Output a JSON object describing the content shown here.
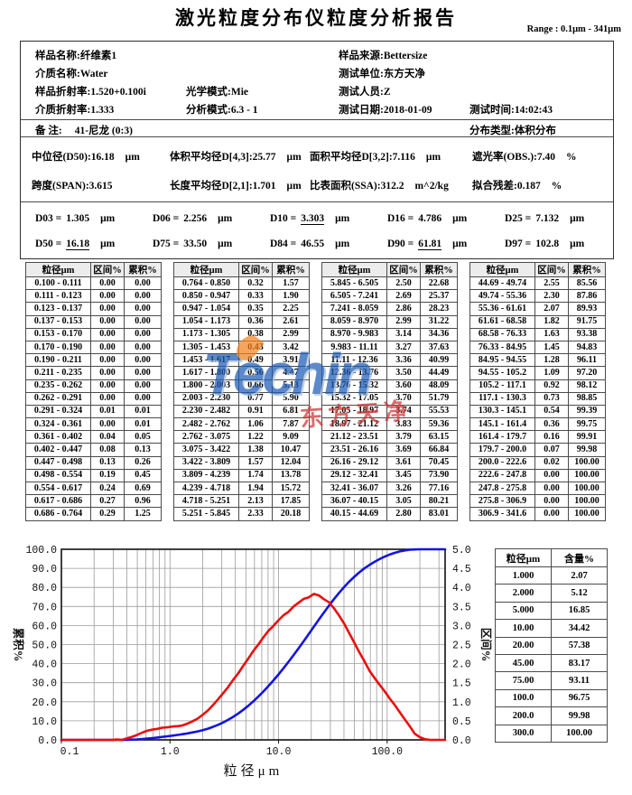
{
  "title": "激光粒度分布仪粒度分析报告",
  "range_label": "Range : 0.1μm - 341μm",
  "info": {
    "items": [
      {
        "label": "样品名称:",
        "value": "纤维素1"
      },
      {
        "label": "样品来源:",
        "value": "Bettersize"
      },
      {
        "label": "介质名称:",
        "value": "Water"
      },
      {
        "label": "测试单位:",
        "value": "东方天净"
      },
      {
        "label": "样品折射率:",
        "value": "1.520+0.100i"
      },
      {
        "label": "光学模式:",
        "value": "Mie"
      },
      {
        "label": "测试人员:",
        "value": "Z"
      },
      {
        "label": "介质折射率:",
        "value": "1.333"
      },
      {
        "label": "分析模式:",
        "value": "6.3 - 1"
      },
      {
        "label": "测试日期:",
        "value": "2018-01-09"
      },
      {
        "label": "测试时间:",
        "value": "14:02:43"
      },
      {
        "label": "备  注:",
        "value": "41-尼龙 (0:3)"
      },
      {
        "label": "分布类型:",
        "value": "体积分布"
      }
    ]
  },
  "stats": {
    "items": [
      {
        "label": "中位径(D50):",
        "value": "16.18",
        "unit": "μm"
      },
      {
        "label": "体积平均径D[4,3]:",
        "value": "25.77",
        "unit": "μm"
      },
      {
        "label": "面积平均径D[3,2]:",
        "value": "7.116",
        "unit": "μm"
      },
      {
        "label": "遮光率(OBS.):",
        "value": "7.40",
        "unit": "%"
      },
      {
        "label": "跨度(SPAN):",
        "value": "3.615",
        "unit": ""
      },
      {
        "label": "长度平均径D[2,1]:",
        "value": "1.701",
        "unit": "μm"
      },
      {
        "label": "比表面积(SSA):",
        "value": "312.2",
        "unit": "m^2/kg"
      },
      {
        "label": "拟合残差:",
        "value": "0.187",
        "unit": "%"
      }
    ]
  },
  "dvalues": [
    {
      "label": "D03 =",
      "value": "1.305",
      "unit": "μm",
      "underline": false
    },
    {
      "label": "D06 =",
      "value": "2.256",
      "unit": "μm",
      "underline": false
    },
    {
      "label": "D10 =",
      "value": "3.303",
      "unit": "μm",
      "underline": true
    },
    {
      "label": "D16 =",
      "value": "4.786",
      "unit": "μm",
      "underline": false
    },
    {
      "label": "D25 =",
      "value": "7.132",
      "unit": "μm",
      "underline": false
    },
    {
      "label": "D50 =",
      "value": "16.18",
      "unit": "μm",
      "underline": true
    },
    {
      "label": "D75 =",
      "value": "33.50",
      "unit": "μm",
      "underline": false
    },
    {
      "label": "D84 =",
      "value": "46.55",
      "unit": "μm",
      "underline": false
    },
    {
      "label": "D90 =",
      "value": "61.81",
      "unit": "μm",
      "underline": true
    },
    {
      "label": "D97 =",
      "value": "102.8",
      "unit": "μm",
      "underline": false
    }
  ],
  "main_table": {
    "header": [
      "粒径μm",
      "区间%",
      "累积%"
    ],
    "groups": [
      [
        [
          "0.100 - 0.111",
          "0.00",
          "0.00"
        ],
        [
          "0.111 - 0.123",
          "0.00",
          "0.00"
        ],
        [
          "0.123 - 0.137",
          "0.00",
          "0.00"
        ],
        [
          "0.137 - 0.153",
          "0.00",
          "0.00"
        ],
        [
          "0.153 - 0.170",
          "0.00",
          "0.00"
        ],
        [
          "0.170 - 0.190",
          "0.00",
          "0.00"
        ],
        [
          "0.190 - 0.211",
          "0.00",
          "0.00"
        ],
        [
          "0.211 - 0.235",
          "0.00",
          "0.00"
        ],
        [
          "0.235 - 0.262",
          "0.00",
          "0.00"
        ],
        [
          "0.262 - 0.291",
          "0.00",
          "0.00"
        ],
        [
          "0.291 - 0.324",
          "0.01",
          "0.01"
        ],
        [
          "0.324 - 0.361",
          "0.00",
          "0.01"
        ],
        [
          "0.361 - 0.402",
          "0.04",
          "0.05"
        ],
        [
          "0.402 - 0.447",
          "0.08",
          "0.13"
        ],
        [
          "0.447 - 0.498",
          "0.13",
          "0.26"
        ],
        [
          "0.498 - 0.554",
          "0.19",
          "0.45"
        ],
        [
          "0.554 - 0.617",
          "0.24",
          "0.69"
        ],
        [
          "0.617 - 0.686",
          "0.27",
          "0.96"
        ],
        [
          "0.686 - 0.764",
          "0.29",
          "1.25"
        ]
      ],
      [
        [
          "0.764 - 0.850",
          "0.32",
          "1.57"
        ],
        [
          "0.850 - 0.947",
          "0.33",
          "1.90"
        ],
        [
          "0.947 - 1.054",
          "0.35",
          "2.25"
        ],
        [
          "1.054 - 1.173",
          "0.36",
          "2.61"
        ],
        [
          "1.173 - 1.305",
          "0.38",
          "2.99"
        ],
        [
          "1.305 - 1.453",
          "0.43",
          "3.42"
        ],
        [
          "1.453 - 1.617",
          "0.49",
          "3.91"
        ],
        [
          "1.617 - 1.800",
          "0.56",
          "4.47"
        ],
        [
          "1.800 - 2.003",
          "0.66",
          "5.13"
        ],
        [
          "2.003 - 2.230",
          "0.77",
          "5.90"
        ],
        [
          "2.230 - 2.482",
          "0.91",
          "6.81"
        ],
        [
          "2.482 - 2.762",
          "1.06",
          "7.87"
        ],
        [
          "2.762 - 3.075",
          "1.22",
          "9.09"
        ],
        [
          "3.075 - 3.422",
          "1.38",
          "10.47"
        ],
        [
          "3.422 - 3.809",
          "1.57",
          "12.04"
        ],
        [
          "3.809 - 4.239",
          "1.74",
          "13.78"
        ],
        [
          "4.239 - 4.718",
          "1.94",
          "15.72"
        ],
        [
          "4.718 - 5.251",
          "2.13",
          "17.85"
        ],
        [
          "5.251 - 5.845",
          "2.33",
          "20.18"
        ]
      ],
      [
        [
          "5.845 - 6.505",
          "2.50",
          "22.68"
        ],
        [
          "6.505 - 7.241",
          "2.69",
          "25.37"
        ],
        [
          "7.241 - 8.059",
          "2.86",
          "28.23"
        ],
        [
          "8.059 - 8.970",
          "2.99",
          "31.22"
        ],
        [
          "8.970 - 9.983",
          "3.14",
          "34.36"
        ],
        [
          "9.983 - 11.11",
          "3.27",
          "37.63"
        ],
        [
          "11.11 - 12.36",
          "3.36",
          "40.99"
        ],
        [
          "12.36 - 13.76",
          "3.50",
          "44.49"
        ],
        [
          "13.76 - 15.32",
          "3.60",
          "48.09"
        ],
        [
          "15.32 - 17.05",
          "3.70",
          "51.79"
        ],
        [
          "17.05 - 18.97",
          "3.74",
          "55.53"
        ],
        [
          "18.97 - 21.12",
          "3.83",
          "59.36"
        ],
        [
          "21.12 - 23.51",
          "3.79",
          "63.15"
        ],
        [
          "23.51 - 26.16",
          "3.69",
          "66.84"
        ],
        [
          "26.16 - 29.12",
          "3.61",
          "70.45"
        ],
        [
          "29.12 - 32.41",
          "3.45",
          "73.90"
        ],
        [
          "32.41 - 36.07",
          "3.26",
          "77.16"
        ],
        [
          "36.07 - 40.15",
          "3.05",
          "80.21"
        ],
        [
          "40.15 - 44.69",
          "2.80",
          "83.01"
        ]
      ],
      [
        [
          "44.69 - 49.74",
          "2.55",
          "85.56"
        ],
        [
          "49.74 - 55.36",
          "2.30",
          "87.86"
        ],
        [
          "55.36 - 61.61",
          "2.07",
          "89.93"
        ],
        [
          "61.61 - 68.58",
          "1.82",
          "91.75"
        ],
        [
          "68.58 - 76.33",
          "1.63",
          "93.38"
        ],
        [
          "76.33 - 84.95",
          "1.45",
          "94.83"
        ],
        [
          "84.95 - 94.55",
          "1.28",
          "96.11"
        ],
        [
          "94.55 - 105.2",
          "1.09",
          "97.20"
        ],
        [
          "105.2 - 117.1",
          "0.92",
          "98.12"
        ],
        [
          "117.1 - 130.3",
          "0.73",
          "98.85"
        ],
        [
          "130.3 - 145.1",
          "0.54",
          "99.39"
        ],
        [
          "145.1 - 161.4",
          "0.36",
          "99.75"
        ],
        [
          "161.4 - 179.7",
          "0.16",
          "99.91"
        ],
        [
          "179.7 - 200.0",
          "0.07",
          "99.98"
        ],
        [
          "200.0 - 222.6",
          "0.02",
          "100.00"
        ],
        [
          "222.6 - 247.8",
          "0.00",
          "100.00"
        ],
        [
          "247.8 - 275.8",
          "0.00",
          "100.00"
        ],
        [
          "275.8 - 306.9",
          "0.00",
          "100.00"
        ],
        [
          "306.9 - 341.6",
          "0.00",
          "100.00"
        ]
      ]
    ]
  },
  "watermark": {
    "logo": "Techin",
    "sub": "东方天净"
  },
  "side_table": {
    "headers": [
      "粒径μm",
      "含量%"
    ],
    "rows": [
      [
        "1.000",
        "2.07"
      ],
      [
        "2.000",
        "5.12"
      ],
      [
        "5.000",
        "16.85"
      ],
      [
        "10.00",
        "34.42"
      ],
      [
        "20.00",
        "57.38"
      ],
      [
        "45.00",
        "83.17"
      ],
      [
        "75.00",
        "93.11"
      ],
      [
        "100.0",
        "96.75"
      ],
      [
        "200.0",
        "99.98"
      ],
      [
        "300.0",
        "100.00"
      ]
    ]
  },
  "chart_data": {
    "type": "line",
    "xscale": "log",
    "xlim": [
      0.1,
      341.6
    ],
    "left_ylim": [
      0,
      100
    ],
    "right_ylim": [
      0,
      5
    ],
    "xlabel": "粒径μm",
    "left_ylabel": "累积%",
    "right_ylabel": "区间%",
    "grid": true,
    "x_ticks": [
      {
        "v": 0.1,
        "label": "0.1"
      },
      {
        "v": 1,
        "label": "1.0"
      },
      {
        "v": 10,
        "label": "10.0"
      },
      {
        "v": 100,
        "label": "100.0"
      }
    ],
    "x": [
      0.1,
      0.111,
      0.123,
      0.137,
      0.153,
      0.17,
      0.19,
      0.211,
      0.235,
      0.262,
      0.291,
      0.324,
      0.361,
      0.402,
      0.447,
      0.498,
      0.554,
      0.617,
      0.686,
      0.764,
      0.85,
      0.947,
      1.054,
      1.173,
      1.305,
      1.453,
      1.617,
      1.8,
      2.003,
      2.23,
      2.482,
      2.762,
      3.075,
      3.422,
      3.809,
      4.239,
      4.718,
      5.251,
      5.845,
      6.505,
      7.241,
      8.059,
      8.97,
      9.983,
      11.11,
      12.36,
      13.76,
      15.32,
      17.05,
      18.97,
      21.12,
      23.51,
      26.16,
      29.12,
      32.41,
      36.07,
      40.15,
      44.69,
      49.74,
      55.36,
      61.61,
      68.58,
      76.33,
      84.95,
      94.55,
      105.2,
      117.1,
      130.3,
      145.1,
      161.4,
      179.7,
      200.0,
      222.6,
      247.8,
      275.8,
      306.9,
      341.6
    ],
    "series": [
      {
        "name": "累积%",
        "axis": "left",
        "color": "#1414e0",
        "y": [
          0,
          0.0,
          0.0,
          0.0,
          0.0,
          0.0,
          0.0,
          0.0,
          0.0,
          0.0,
          0.0,
          0.01,
          0.01,
          0.05,
          0.13,
          0.26,
          0.45,
          0.69,
          0.96,
          1.25,
          1.57,
          1.9,
          2.25,
          2.61,
          2.99,
          3.42,
          3.91,
          4.47,
          5.13,
          5.9,
          6.81,
          7.87,
          9.09,
          10.47,
          12.04,
          13.78,
          15.72,
          17.85,
          20.18,
          22.68,
          25.37,
          28.23,
          31.22,
          34.36,
          37.63,
          40.99,
          44.49,
          48.09,
          51.79,
          55.53,
          59.36,
          63.15,
          66.84,
          70.45,
          73.9,
          77.16,
          80.21,
          83.01,
          85.56,
          87.86,
          89.93,
          91.75,
          93.38,
          94.83,
          96.11,
          97.2,
          98.12,
          98.85,
          99.39,
          99.75,
          99.91,
          99.98,
          100.0,
          100.0,
          100.0,
          100.0,
          100.0
        ]
      },
      {
        "name": "区间%",
        "axis": "right",
        "color": "#ea0e0e",
        "y": [
          0,
          0.0,
          0.0,
          0.0,
          0.0,
          0.0,
          0.0,
          0.0,
          0.0,
          0.0,
          0.0,
          0.01,
          0.0,
          0.04,
          0.08,
          0.13,
          0.19,
          0.24,
          0.27,
          0.29,
          0.32,
          0.33,
          0.35,
          0.36,
          0.38,
          0.43,
          0.49,
          0.56,
          0.66,
          0.77,
          0.91,
          1.06,
          1.22,
          1.38,
          1.57,
          1.74,
          1.94,
          2.13,
          2.33,
          2.5,
          2.69,
          2.86,
          2.99,
          3.14,
          3.27,
          3.36,
          3.5,
          3.6,
          3.7,
          3.74,
          3.83,
          3.79,
          3.69,
          3.61,
          3.45,
          3.26,
          3.05,
          2.8,
          2.55,
          2.3,
          2.07,
          1.82,
          1.63,
          1.45,
          1.28,
          1.09,
          0.92,
          0.73,
          0.54,
          0.36,
          0.16,
          0.07,
          0.02,
          0.0,
          0.0,
          0.0,
          0.0
        ]
      }
    ]
  }
}
